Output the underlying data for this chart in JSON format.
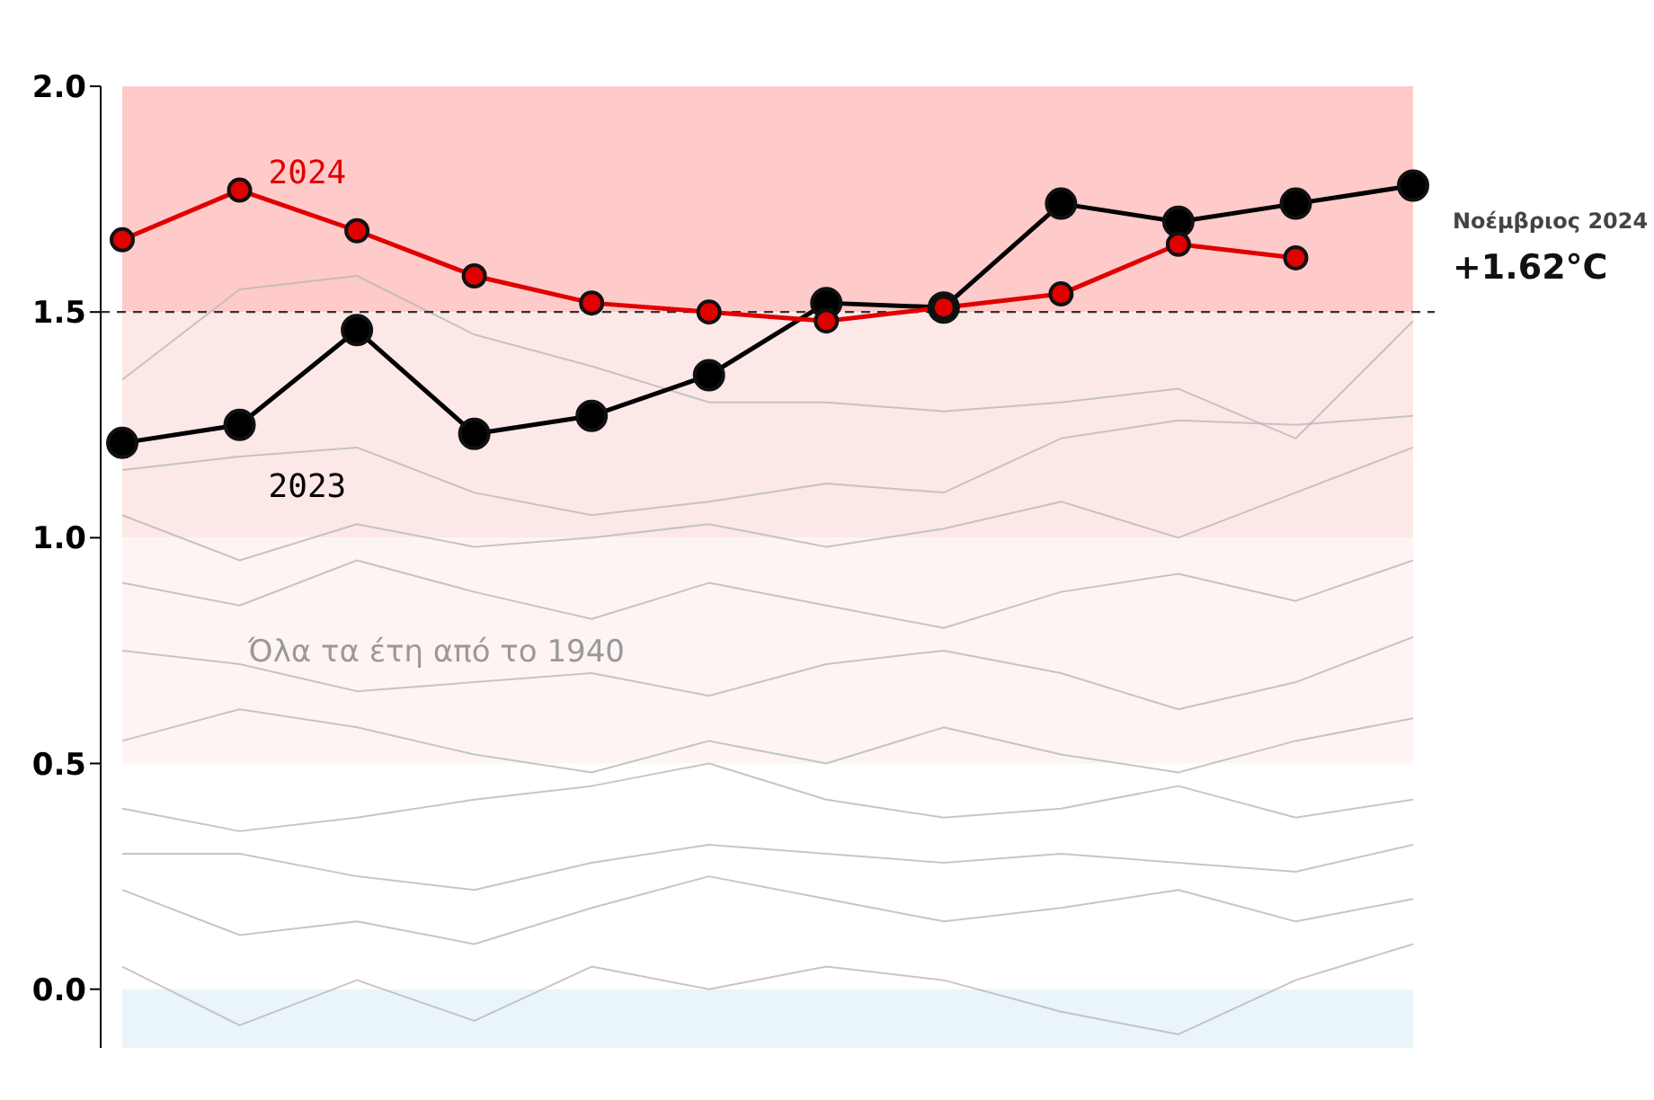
{
  "chart_data": {
    "type": "line",
    "categories": [
      null,
      null,
      null,
      null,
      null,
      null,
      null,
      null,
      null,
      null,
      null,
      null
    ],
    "series": [
      {
        "name": null,
        "color": "#b8b8b8",
        "marker": "none",
        "values": [
          1.35,
          1.55,
          1.58,
          1.45,
          1.38,
          1.3,
          1.3,
          1.28,
          1.3,
          1.33,
          1.22,
          1.48
        ]
      },
      {
        "name": null,
        "color": "#b8b8b8",
        "marker": "none",
        "values": [
          1.15,
          1.18,
          1.2,
          1.1,
          1.05,
          1.08,
          1.12,
          1.1,
          1.22,
          1.26,
          1.25,
          1.27
        ]
      },
      {
        "name": null,
        "color": "#b8b8b8",
        "marker": "none",
        "values": [
          1.05,
          0.95,
          1.03,
          0.98,
          1.0,
          1.03,
          0.98,
          1.02,
          1.08,
          1.0,
          1.1,
          1.2
        ]
      },
      {
        "name": null,
        "color": "#b8b8b8",
        "marker": "none",
        "values": [
          0.9,
          0.85,
          0.95,
          0.88,
          0.82,
          0.9,
          0.85,
          0.8,
          0.88,
          0.92,
          0.86,
          0.95
        ]
      },
      {
        "name": null,
        "color": "#b8b8b8",
        "marker": "none",
        "values": [
          0.75,
          0.72,
          0.66,
          0.68,
          0.7,
          0.65,
          0.72,
          0.75,
          0.7,
          0.62,
          0.68,
          0.78
        ]
      },
      {
        "name": null,
        "color": "#b8b8b8",
        "marker": "none",
        "values": [
          0.55,
          0.62,
          0.58,
          0.52,
          0.48,
          0.55,
          0.5,
          0.58,
          0.52,
          0.48,
          0.55,
          0.6
        ]
      },
      {
        "name": null,
        "color": "#b8b8b8",
        "marker": "none",
        "values": [
          0.4,
          0.35,
          0.38,
          0.42,
          0.45,
          0.5,
          0.42,
          0.38,
          0.4,
          0.45,
          0.38,
          0.42
        ]
      },
      {
        "name": null,
        "color": "#b8b8b8",
        "marker": "none",
        "values": [
          0.3,
          0.3,
          0.25,
          0.22,
          0.28,
          0.32,
          0.3,
          0.28,
          0.3,
          0.28,
          0.26,
          0.32
        ]
      },
      {
        "name": null,
        "color": "#b8b8b8",
        "marker": "none",
        "values": [
          0.22,
          0.12,
          0.15,
          0.1,
          0.18,
          0.25,
          0.2,
          0.15,
          0.18,
          0.22,
          0.15,
          0.2
        ]
      },
      {
        "name": null,
        "color": "#b8b8b8",
        "marker": "none",
        "values": [
          0.05,
          -0.08,
          0.02,
          -0.07,
          0.05,
          0.0,
          0.05,
          0.02,
          -0.05,
          -0.1,
          0.02,
          0.1
        ]
      },
      {
        "name": "2023",
        "color": "#000000",
        "values": [
          1.21,
          1.25,
          1.46,
          1.23,
          1.27,
          1.36,
          1.52,
          1.51,
          1.74,
          1.7,
          1.74,
          1.78
        ]
      },
      {
        "name": "2024",
        "color": "#e00000",
        "values": [
          1.66,
          1.77,
          1.68,
          1.58,
          1.52,
          1.5,
          1.48,
          1.51,
          1.54,
          1.65,
          1.62,
          null
        ]
      }
    ],
    "ylim": [
      -0.13,
      2.0
    ],
    "yticks": [
      {
        "value": 0,
        "label": "0.0"
      },
      {
        "value": 0.5,
        "label": "0.5"
      },
      {
        "value": 1,
        "label": "1.0"
      },
      {
        "value": 1.5,
        "label": "1.5"
      },
      {
        "value": 2,
        "label": "2.0"
      }
    ],
    "tick_labels": "y",
    "marker": "circle",
    "bands": [
      {
        "axis": "y",
        "from": 1.5,
        "to": 2.0,
        "color": "#ffcaca"
      },
      {
        "axis": "y",
        "from": 1.0,
        "to": 1.5,
        "color": "#fde8e8"
      },
      {
        "axis": "y",
        "from": 0.5,
        "to": 1.0,
        "color": "#fff4f4"
      },
      {
        "axis": "y",
        "from": -0.13,
        "to": 0,
        "color": "#eaf5f9"
      }
    ],
    "ref_lines": [
      {
        "axis": "y",
        "value": 1.5,
        "color": "#333333",
        "line_style": "dashed"
      }
    ],
    "annotations": [
      "Όλα τα έτη από το 1940",
      "Νοέμβριος 2024",
      "+1.62°C"
    ]
  }
}
